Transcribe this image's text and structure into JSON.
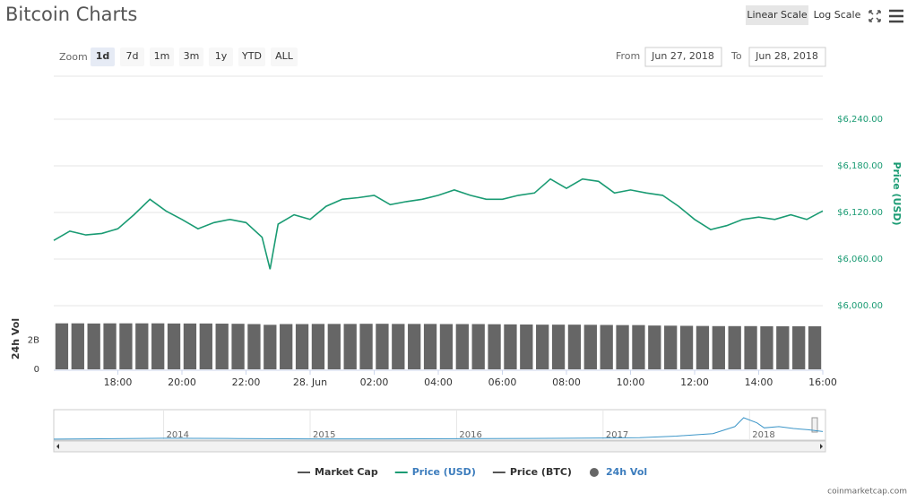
{
  "chart_data": {
    "type": "line",
    "title": "Bitcoin Charts",
    "scale_buttons": [
      "Linear Scale",
      "Log Scale"
    ],
    "log_scale": false,
    "zoom_label": "Zoom",
    "zoom_buttons": [
      "1d",
      "7d",
      "1m",
      "3m",
      "1y",
      "YTD",
      "ALL"
    ],
    "selected_zoom": "1d",
    "from_label": "From",
    "from_date": "Jun 27, 2018",
    "to_label": "To",
    "to_date": "Jun 28, 2018",
    "y_label": "Price (USD)",
    "xlim": [
      16,
      40
    ],
    "xticks": [
      {
        "value": 18,
        "label": "18:00"
      },
      {
        "value": 20,
        "label": "20:00"
      },
      {
        "value": 22,
        "label": "22:00"
      },
      {
        "value": 24,
        "label": "28. Jun"
      },
      {
        "value": 26,
        "label": "02:00"
      },
      {
        "value": 28,
        "label": "04:00"
      },
      {
        "value": 30,
        "label": "06:00"
      },
      {
        "value": 32,
        "label": "08:00"
      },
      {
        "value": 34,
        "label": "10:00"
      },
      {
        "value": 36,
        "label": "12:00"
      },
      {
        "value": 38,
        "label": "14:00"
      },
      {
        "value": 40,
        "label": "16:00"
      }
    ],
    "ylim": [
      6000,
      6300
    ],
    "yticks": [
      {
        "value": 6000,
        "label": "$6,000.00"
      },
      {
        "value": 6060,
        "label": "$6,060.00"
      },
      {
        "value": 6120,
        "label": "$6,120.00"
      },
      {
        "value": 6180,
        "label": "$6,180.00"
      },
      {
        "value": 6240,
        "label": "$6,240.00"
      }
    ],
    "grid": true,
    "x": [
      16,
      16.5,
      17,
      17.5,
      18,
      18.5,
      19,
      19.5,
      20,
      20.5,
      21,
      21.5,
      22,
      22.5,
      22.75,
      23,
      23.5,
      24,
      24.5,
      25,
      25.5,
      26,
      26.5,
      27,
      27.5,
      28,
      28.5,
      29,
      29.5,
      30,
      30.5,
      31,
      31.5,
      32,
      32.5,
      33,
      33.5,
      34,
      34.5,
      35,
      35.5,
      36,
      36.5,
      37,
      37.5,
      38,
      38.5,
      39,
      39.5,
      40
    ],
    "series": [
      {
        "name": "Price (USD)",
        "color": "#1a9b73",
        "values": [
          6084,
          6096,
          6091,
          6093,
          6099,
          6117,
          6137,
          6122,
          6111,
          6099,
          6107,
          6111,
          6107,
          6088,
          6047,
          6105,
          6117,
          6111,
          6128,
          6137,
          6139,
          6142,
          6130,
          6134,
          6137,
          6142,
          6149,
          6142,
          6137,
          6137,
          6142,
          6145,
          6163,
          6151,
          6163,
          6160,
          6145,
          6149,
          6145,
          6142,
          6128,
          6111,
          6098,
          6103,
          6111,
          6114,
          6111,
          6117,
          6111,
          6122
        ]
      }
    ],
    "volume": {
      "name": "24h Vol",
      "color": "#666666",
      "ylim": [
        0,
        3500000000
      ],
      "yticks": [
        0,
        {
          "value": 2000000000,
          "label": "2B"
        }
      ],
      "x": [
        16.25,
        16.75,
        17.25,
        17.75,
        18.25,
        18.75,
        19.25,
        19.75,
        20.25,
        20.75,
        21.25,
        21.75,
        22.25,
        22.75,
        23.25,
        23.75,
        24.25,
        24.75,
        25.25,
        25.75,
        26.25,
        26.75,
        27.25,
        27.75,
        28.25,
        28.75,
        29.25,
        29.75,
        30.25,
        30.75,
        31.25,
        31.75,
        32.25,
        32.75,
        33.25,
        33.75,
        34.25,
        34.75,
        35.25,
        35.75,
        36.25,
        36.75,
        37.25,
        37.75,
        38.25,
        38.75,
        39.25,
        39.75
      ],
      "values": [
        3150000000,
        3150000000,
        3140000000,
        3150000000,
        3150000000,
        3150000000,
        3150000000,
        3140000000,
        3140000000,
        3140000000,
        3130000000,
        3120000000,
        3100000000,
        3050000000,
        3100000000,
        3100000000,
        3110000000,
        3110000000,
        3110000000,
        3120000000,
        3120000000,
        3110000000,
        3110000000,
        3110000000,
        3100000000,
        3100000000,
        3100000000,
        3090000000,
        3080000000,
        3070000000,
        3060000000,
        3060000000,
        3060000000,
        3050000000,
        3040000000,
        3030000000,
        3030000000,
        3000000000,
        2990000000,
        2980000000,
        2970000000,
        2960000000,
        2960000000,
        2960000000,
        2950000000,
        2950000000,
        2950000000,
        2950000000
      ]
    },
    "navigator": {
      "xlim": [
        2013.25,
        2018.5
      ],
      "xticks": [
        2014,
        2015,
        2016,
        2017,
        2018
      ],
      "ylim": [
        0,
        22000
      ],
      "x": [
        2013.25,
        2013.75,
        2014,
        2014.5,
        2015,
        2015.5,
        2016,
        2016.5,
        2017,
        2017.25,
        2017.5,
        2017.75,
        2017.9,
        2017.96,
        2018.05,
        2018.1,
        2018.2,
        2018.3,
        2018.4,
        2018.5
      ],
      "values": [
        100,
        500,
        800,
        600,
        300,
        250,
        400,
        650,
        1000,
        1200,
        2500,
        4500,
        10000,
        17000,
        13000,
        9000,
        10000,
        8500,
        7500,
        6100
      ]
    },
    "legend": [
      {
        "name": "Market Cap",
        "color": "#555555",
        "active": false
      },
      {
        "name": "Price (USD)",
        "color": "#1a9b73",
        "active": true
      },
      {
        "name": "Price (BTC)",
        "color": "#555555",
        "active": false
      },
      {
        "name": "24h Vol",
        "color": "#666666",
        "active": true
      }
    ],
    "credit": "coinmarketcap.com"
  }
}
